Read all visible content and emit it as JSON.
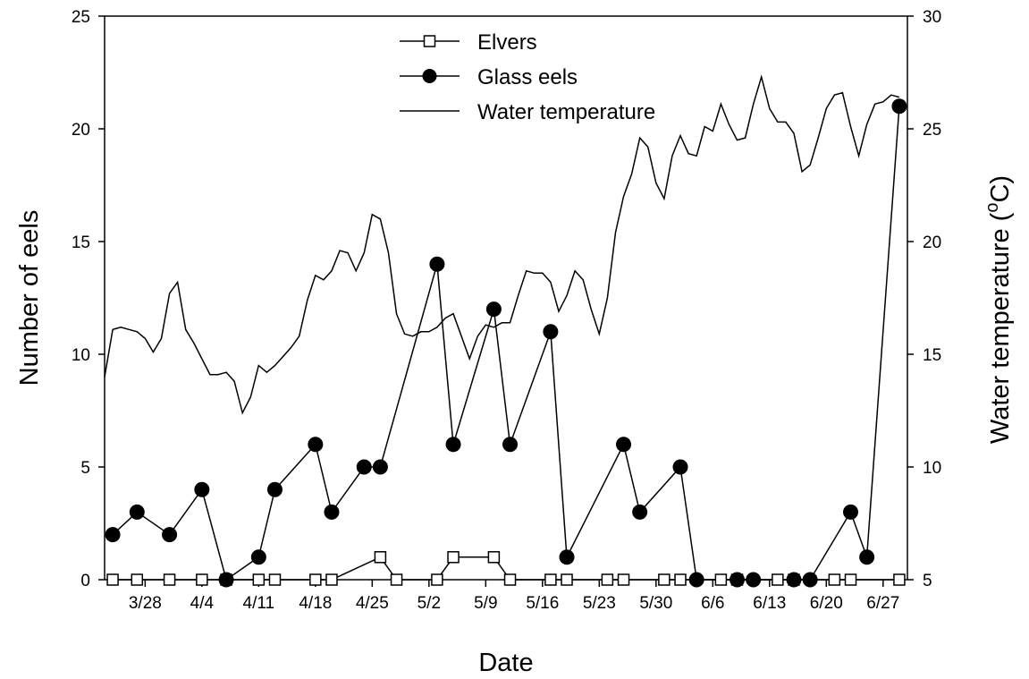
{
  "chart_data": {
    "type": "line",
    "xlabel": "Date",
    "ylabel_left": "Number of eels",
    "ylabel_right_main": "Water temperature (",
    "ylabel_right_sup": "o",
    "ylabel_right_end": "C)",
    "x_tick_labels": [
      {
        "label": "3/28",
        "x": 28
      },
      {
        "label": "4/4",
        "x": 35
      },
      {
        "label": "4/11",
        "x": 42
      },
      {
        "label": "4/18",
        "x": 49
      },
      {
        "label": "4/25",
        "x": 56
      },
      {
        "label": "5/2",
        "x": 63
      },
      {
        "label": "5/9",
        "x": 70
      },
      {
        "label": "5/16",
        "x": 77
      },
      {
        "label": "5/23",
        "x": 84
      },
      {
        "label": "5/30",
        "x": 91
      },
      {
        "label": "6/6",
        "x": 98
      },
      {
        "label": "6/13",
        "x": 105
      },
      {
        "label": "6/20",
        "x": 112
      },
      {
        "label": "6/27",
        "x": 119
      }
    ],
    "xlim": [
      23,
      122
    ],
    "ylim_left": [
      0,
      25
    ],
    "ylim_right": [
      5,
      30
    ],
    "y_left_ticks": [
      0,
      5,
      10,
      15,
      20,
      25
    ],
    "y_right_ticks": [
      5,
      10,
      15,
      20,
      25,
      30
    ],
    "legend": {
      "position": "top-center",
      "entries": [
        {
          "label": "Elvers",
          "style": "open-square"
        },
        {
          "label": "Glass eels",
          "style": "filled-circle"
        },
        {
          "label": "Water temperature",
          "style": "line"
        }
      ]
    },
    "series": [
      {
        "name": "Elvers",
        "axis": "left",
        "points": [
          [
            24,
            0
          ],
          [
            27,
            0
          ],
          [
            31,
            0
          ],
          [
            35,
            0
          ],
          [
            38,
            0
          ],
          [
            42,
            0
          ],
          [
            44,
            0
          ],
          [
            49,
            0
          ],
          [
            51,
            0
          ],
          [
            57,
            1
          ],
          [
            59,
            0
          ],
          [
            64,
            0
          ],
          [
            66,
            1
          ],
          [
            71,
            1
          ],
          [
            73,
            0
          ],
          [
            78,
            0
          ],
          [
            80,
            0
          ],
          [
            85,
            0
          ],
          [
            87,
            0
          ],
          [
            92,
            0
          ],
          [
            94,
            0
          ],
          [
            99,
            0
          ],
          [
            101,
            0
          ],
          [
            106,
            0
          ],
          [
            108,
            0
          ],
          [
            113,
            0
          ],
          [
            115,
            0
          ],
          [
            121,
            0
          ]
        ]
      },
      {
        "name": "Glass eels",
        "axis": "left",
        "points": [
          [
            24,
            2
          ],
          [
            27,
            3
          ],
          [
            31,
            2
          ],
          [
            35,
            4
          ],
          [
            38,
            0
          ],
          [
            42,
            1
          ],
          [
            44,
            4
          ],
          [
            49,
            6
          ],
          [
            51,
            3
          ],
          [
            55,
            5
          ],
          [
            57,
            5
          ],
          [
            64,
            14
          ],
          [
            66,
            6
          ],
          [
            71,
            12
          ],
          [
            73,
            6
          ],
          [
            78,
            11
          ],
          [
            80,
            1
          ],
          [
            87,
            6
          ],
          [
            89,
            3
          ],
          [
            94,
            5
          ],
          [
            96,
            0
          ],
          [
            101,
            0
          ],
          [
            103,
            0
          ],
          [
            108,
            0
          ],
          [
            110,
            0
          ],
          [
            115,
            3
          ],
          [
            117,
            1
          ],
          [
            121,
            21
          ]
        ]
      },
      {
        "name": "Water temperature",
        "axis": "right",
        "points": [
          [
            23,
            14
          ],
          [
            24,
            16.1
          ],
          [
            25,
            16.2
          ],
          [
            26,
            16.1
          ],
          [
            27,
            16
          ],
          [
            28,
            15.7
          ],
          [
            29,
            15.1
          ],
          [
            30,
            15.7
          ],
          [
            31,
            17.7
          ],
          [
            32,
            18.2
          ],
          [
            33,
            16.1
          ],
          [
            34,
            15.5
          ],
          [
            35,
            14.8
          ],
          [
            36,
            14.1
          ],
          [
            37,
            14.1
          ],
          [
            38,
            14.2
          ],
          [
            39,
            13.8
          ],
          [
            40,
            12.4
          ],
          [
            41,
            13.1
          ],
          [
            42,
            14.5
          ],
          [
            43,
            14.2
          ],
          [
            44,
            14.5
          ],
          [
            45,
            14.9
          ],
          [
            46,
            15.3
          ],
          [
            47,
            15.8
          ],
          [
            48,
            17.4
          ],
          [
            49,
            18.5
          ],
          [
            50,
            18.3
          ],
          [
            51,
            18.7
          ],
          [
            52,
            19.6
          ],
          [
            53,
            19.5
          ],
          [
            54,
            18.7
          ],
          [
            55,
            19.5
          ],
          [
            56,
            21.2
          ],
          [
            57,
            21
          ],
          [
            58,
            19.5
          ],
          [
            59,
            16.8
          ],
          [
            60,
            15.9
          ],
          [
            61,
            15.8
          ],
          [
            62,
            16
          ],
          [
            63,
            16
          ],
          [
            64,
            16.2
          ],
          [
            65,
            16.6
          ],
          [
            66,
            16.8
          ],
          [
            67,
            15.8
          ],
          [
            68,
            14.8
          ],
          [
            69,
            15.8
          ],
          [
            70,
            16.3
          ],
          [
            71,
            16.2
          ],
          [
            72,
            16.4
          ],
          [
            73,
            16.4
          ],
          [
            74,
            17.6
          ],
          [
            75,
            18.7
          ],
          [
            76,
            18.6
          ],
          [
            77,
            18.6
          ],
          [
            78,
            18.2
          ],
          [
            79,
            16.9
          ],
          [
            80,
            17.6
          ],
          [
            81,
            18.7
          ],
          [
            82,
            18.3
          ],
          [
            83,
            17
          ],
          [
            84,
            15.9
          ],
          [
            85,
            17.5
          ],
          [
            86,
            20.4
          ],
          [
            87,
            22
          ],
          [
            88,
            23
          ],
          [
            89,
            24.6
          ],
          [
            90,
            24.2
          ],
          [
            91,
            22.6
          ],
          [
            92,
            21.9
          ],
          [
            93,
            23.8
          ],
          [
            94,
            24.7
          ],
          [
            95,
            23.9
          ],
          [
            96,
            23.8
          ],
          [
            97,
            25.1
          ],
          [
            98,
            24.9
          ],
          [
            99,
            26.1
          ],
          [
            100,
            25.2
          ],
          [
            101,
            24.5
          ],
          [
            102,
            24.6
          ],
          [
            103,
            26.1
          ],
          [
            104,
            27.3
          ],
          [
            105,
            25.9
          ],
          [
            106,
            25.3
          ],
          [
            107,
            25.3
          ],
          [
            108,
            24.8
          ],
          [
            109,
            23.1
          ],
          [
            110,
            23.4
          ],
          [
            111,
            24.6
          ],
          [
            112,
            25.9
          ],
          [
            113,
            26.5
          ],
          [
            114,
            26.6
          ],
          [
            115,
            25.1
          ],
          [
            116,
            23.8
          ],
          [
            117,
            25.2
          ],
          [
            118,
            26.1
          ],
          [
            119,
            26.2
          ],
          [
            120,
            26.5
          ],
          [
            121,
            26.4
          ]
        ]
      }
    ]
  }
}
